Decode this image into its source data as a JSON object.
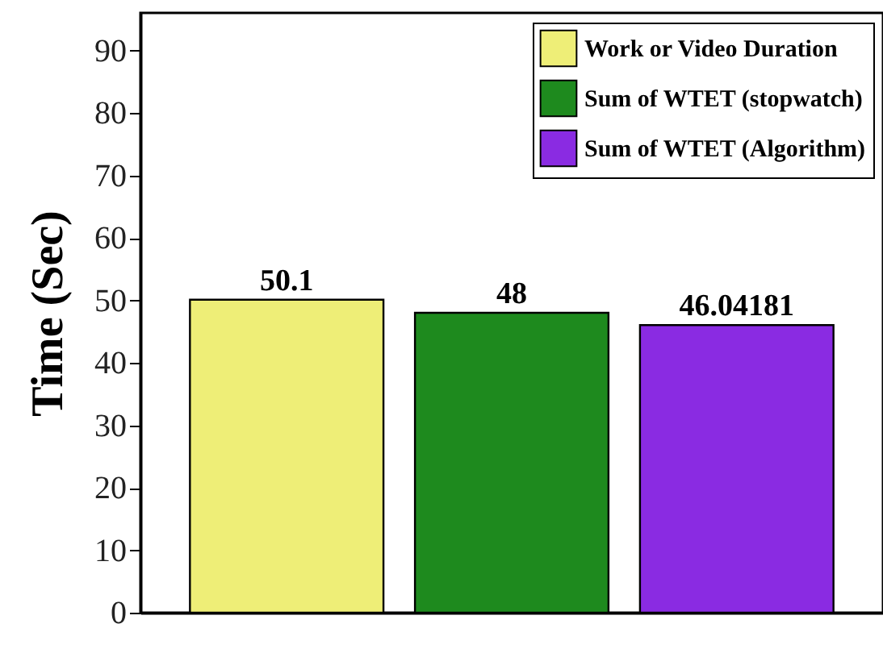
{
  "chart_data": {
    "type": "bar",
    "ylabel": "Time (Sec)",
    "categories": [
      null,
      null,
      null
    ],
    "series": [
      {
        "name": "Work or Video Duration",
        "color": "#eeee77",
        "values": [
          50.1,
          null,
          null
        ]
      },
      {
        "name": "Sum of WTET (stopwatch)",
        "color": "#1e8a1e",
        "values": [
          null,
          48,
          null
        ]
      },
      {
        "name": "Sum of WTET (Algorithm)",
        "color": "#8a2be2",
        "values": [
          null,
          null,
          46.04181
        ]
      }
    ],
    "ylim": [
      0,
      96
    ],
    "yticks": [
      0,
      10,
      20,
      30,
      40,
      50,
      60,
      70,
      80,
      90
    ],
    "data_labels": true,
    "legend": "top right",
    "grid": false
  }
}
